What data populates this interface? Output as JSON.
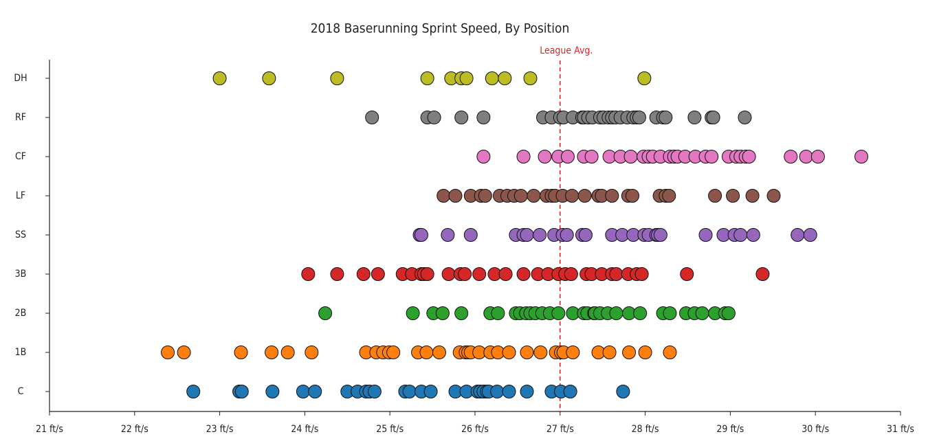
{
  "chart_data": {
    "type": "strip",
    "title": "2018 Baserunning Sprint Speed, By Position",
    "xlim": [
      21,
      31
    ],
    "xticks": [
      {
        "value": 21,
        "label": "21 ft/s"
      },
      {
        "value": 22,
        "label": "22 ft/s"
      },
      {
        "value": 23,
        "label": "23 ft/s"
      },
      {
        "value": 24,
        "label": "24 ft/s"
      },
      {
        "value": 25,
        "label": "25 ft/s"
      },
      {
        "value": 26,
        "label": "26 ft/s"
      },
      {
        "value": 27,
        "label": "27 ft/s"
      },
      {
        "value": 28,
        "label": "28 ft/s"
      },
      {
        "value": 29,
        "label": "29 ft/s"
      },
      {
        "value": 30,
        "label": "30 ft/s"
      },
      {
        "value": 31,
        "label": "31 ft/s"
      }
    ],
    "reference_line": {
      "value": 27,
      "label": "League Avg.",
      "color": "#d62728"
    },
    "series": [
      {
        "name": "C",
        "color": "#1f77b4",
        "values": [
          22.69,
          23.23,
          23.26,
          23.62,
          23.98,
          24.12,
          24.5,
          24.62,
          24.72,
          24.76,
          24.82,
          25.18,
          25.23,
          25.37,
          25.48,
          25.77,
          25.9,
          26.03,
          26.06,
          26.1,
          26.14,
          26.16,
          26.26,
          26.4,
          26.61,
          26.9,
          27.01,
          27.12,
          27.74
        ]
      },
      {
        "name": "1B",
        "color": "#ff7f0e",
        "values": [
          22.39,
          22.58,
          23.25,
          23.61,
          23.8,
          24.08,
          24.72,
          24.84,
          24.92,
          24.99,
          25.04,
          25.33,
          25.43,
          25.58,
          25.82,
          25.89,
          25.92,
          25.95,
          26.05,
          26.18,
          26.27,
          26.4,
          26.61,
          26.77,
          26.95,
          27.01,
          27.04,
          27.15,
          27.45,
          27.58,
          27.81,
          28.0,
          28.29
        ]
      },
      {
        "name": "2B",
        "color": "#2ca02c",
        "values": [
          24.24,
          25.27,
          25.51,
          25.62,
          25.84,
          26.18,
          26.27,
          26.48,
          26.53,
          26.6,
          26.65,
          26.71,
          26.79,
          26.88,
          26.98,
          27.15,
          27.28,
          27.32,
          27.4,
          27.41,
          27.47,
          27.56,
          27.66,
          27.81,
          27.94,
          28.21,
          28.29,
          28.48,
          28.58,
          28.67,
          28.82,
          28.94,
          28.98
        ]
      },
      {
        "name": "3B",
        "color": "#d62728",
        "values": [
          24.04,
          24.38,
          24.69,
          24.86,
          25.15,
          25.26,
          25.37,
          25.4,
          25.44,
          25.69,
          25.83,
          25.88,
          26.05,
          26.23,
          26.36,
          26.57,
          26.74,
          26.86,
          26.98,
          27.06,
          27.13,
          27.31,
          27.37,
          27.49,
          27.61,
          27.66,
          27.8,
          27.9,
          27.96,
          28.49,
          29.38
        ]
      },
      {
        "name": "SS",
        "color": "#9467bd",
        "values": [
          25.35,
          25.37,
          25.68,
          25.95,
          26.48,
          26.57,
          26.61,
          26.76,
          26.93,
          27.03,
          27.08,
          27.26,
          27.3,
          27.61,
          27.73,
          27.86,
          27.99,
          28.04,
          28.13,
          28.15,
          28.18,
          28.71,
          28.92,
          29.05,
          29.12,
          29.27,
          29.79,
          29.94
        ]
      },
      {
        "name": "LF",
        "color": "#8c564b",
        "values": [
          25.63,
          25.77,
          25.95,
          26.07,
          26.12,
          26.29,
          26.38,
          26.46,
          26.54,
          26.69,
          26.84,
          26.9,
          26.94,
          27.03,
          27.14,
          27.29,
          27.45,
          27.49,
          27.61,
          27.8,
          27.85,
          28.17,
          28.24,
          28.28,
          28.82,
          29.03,
          29.26,
          29.51
        ]
      },
      {
        "name": "CF",
        "color": "#e377c2",
        "values": [
          26.1,
          26.57,
          26.82,
          26.98,
          27.09,
          27.28,
          27.37,
          27.58,
          27.71,
          27.83,
          27.98,
          28.04,
          28.09,
          28.18,
          28.29,
          28.34,
          28.38,
          28.47,
          28.59,
          28.71,
          28.78,
          28.98,
          29.07,
          29.12,
          29.18,
          29.22,
          29.71,
          29.89,
          30.03,
          30.54
        ]
      },
      {
        "name": "RF",
        "color": "#7f7f7f",
        "values": [
          24.79,
          25.44,
          25.52,
          25.84,
          26.1,
          26.8,
          26.9,
          27.0,
          27.04,
          27.15,
          27.26,
          27.28,
          27.33,
          27.38,
          27.47,
          27.51,
          27.57,
          27.61,
          27.65,
          27.71,
          27.79,
          27.86,
          27.9,
          27.93,
          28.13,
          28.21,
          28.24,
          28.58,
          28.78,
          28.8,
          29.17
        ]
      },
      {
        "name": "DH",
        "color": "#bcbd22",
        "values": [
          23.0,
          23.58,
          24.38,
          25.44,
          25.72,
          25.84,
          25.9,
          26.2,
          26.35,
          26.65,
          27.99
        ]
      }
    ]
  }
}
